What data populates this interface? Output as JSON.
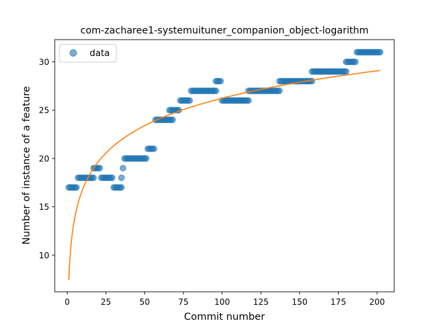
{
  "chart_data": {
    "type": "scatter",
    "title": "com-zacharee1-systemuituner_companion_object-logarithm",
    "xlabel": "Commit number",
    "ylabel": "Number of instance of a feature",
    "xlim": [
      -8.05,
      211.05
    ],
    "ylim": [
      6.2,
      32.3
    ],
    "xticks": [
      0,
      25,
      50,
      75,
      100,
      125,
      150,
      175,
      200
    ],
    "yticks": [
      10,
      15,
      20,
      25,
      30
    ],
    "legend": {
      "position": "top-left",
      "entries": [
        "data"
      ]
    },
    "colors": {
      "data": "#1f77b4",
      "fit": "#ff7f0e"
    },
    "series": [
      {
        "name": "data",
        "kind": "scatter",
        "segments": [
          {
            "x_from": 1,
            "x_to": 6,
            "y": 17
          },
          {
            "x_from": 7,
            "x_to": 17,
            "y": 18
          },
          {
            "x_from": 17,
            "x_to": 21,
            "y": 19
          },
          {
            "x_from": 22,
            "x_to": 29,
            "y": 18
          },
          {
            "x_from": 30,
            "x_to": 35,
            "y": 17
          },
          {
            "x_from": 35,
            "x_to": 35,
            "y": 18
          },
          {
            "x_from": 36,
            "x_to": 36,
            "y": 19
          },
          {
            "x_from": 37,
            "x_to": 51,
            "y": 20
          },
          {
            "x_from": 52,
            "x_to": 56,
            "y": 21
          },
          {
            "x_from": 57,
            "x_to": 67,
            "y": 24
          },
          {
            "x_from": 66,
            "x_to": 72,
            "y": 25
          },
          {
            "x_from": 68,
            "x_to": 68,
            "y": 24
          },
          {
            "x_from": 73,
            "x_to": 79,
            "y": 26
          },
          {
            "x_from": 80,
            "x_to": 96,
            "y": 27
          },
          {
            "x_from": 96,
            "x_to": 99,
            "y": 28
          },
          {
            "x_from": 100,
            "x_to": 117,
            "y": 26
          },
          {
            "x_from": 117,
            "x_to": 137,
            "y": 27
          },
          {
            "x_from": 137,
            "x_to": 158,
            "y": 28
          },
          {
            "x_from": 158,
            "x_to": 180,
            "y": 29
          },
          {
            "x_from": 180,
            "x_to": 186,
            "y": 30
          },
          {
            "x_from": 187,
            "x_to": 202,
            "y": 31
          }
        ]
      },
      {
        "name": "",
        "kind": "line",
        "fit": {
          "model": "logarithmic",
          "a": 7.4,
          "b": 4.09,
          "x_from": 1,
          "x_to": 202
        }
      }
    ]
  }
}
